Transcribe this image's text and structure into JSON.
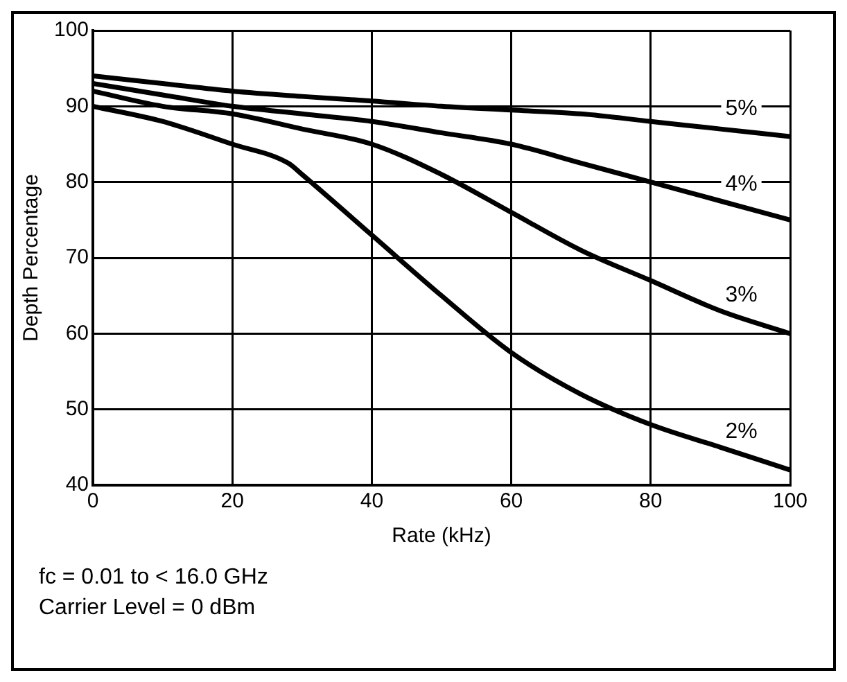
{
  "chart_data": {
    "type": "line",
    "xlabel": "Rate (kHz)",
    "ylabel": "Depth Percentage",
    "xlim": [
      0,
      100
    ],
    "xticks": [
      0,
      20,
      40,
      60,
      80,
      100
    ],
    "ylim": [
      40,
      100
    ],
    "yticks": [
      40,
      50,
      60,
      70,
      80,
      90,
      100
    ],
    "grid": true,
    "legend": false,
    "marker": "none",
    "line_style": "solid",
    "series": [
      {
        "name": "5%",
        "color": "#000000",
        "x": [
          0,
          10,
          20,
          30,
          40,
          50,
          60,
          70,
          80,
          90,
          100
        ],
        "values": [
          94,
          93,
          92,
          91.3,
          90.7,
          90,
          89.5,
          89,
          88,
          87,
          86
        ]
      },
      {
        "name": "4%",
        "color": "#000000",
        "x": [
          0,
          10,
          20,
          30,
          40,
          50,
          60,
          70,
          80,
          90,
          100
        ],
        "values": [
          93,
          91.5,
          90,
          89,
          88,
          86.5,
          85,
          82.5,
          80,
          77.5,
          75
        ]
      },
      {
        "name": "3%",
        "color": "#000000",
        "x": [
          0,
          10,
          20,
          30,
          40,
          50,
          60,
          70,
          80,
          90,
          100
        ],
        "values": [
          92,
          90,
          89,
          87,
          85,
          81,
          76,
          71,
          67,
          63,
          60
        ]
      },
      {
        "name": "2%",
        "color": "#000000",
        "x": [
          0,
          10,
          20,
          28,
          30,
          40,
          50,
          60,
          70,
          80,
          90,
          100
        ],
        "values": [
          90,
          88,
          85,
          82.5,
          81,
          73,
          65,
          57.5,
          52,
          48,
          45,
          42
        ]
      }
    ],
    "annotations": [
      "fc = 0.01 to < 16.0 GHz",
      "Carrier Level = 0 dBm"
    ]
  }
}
